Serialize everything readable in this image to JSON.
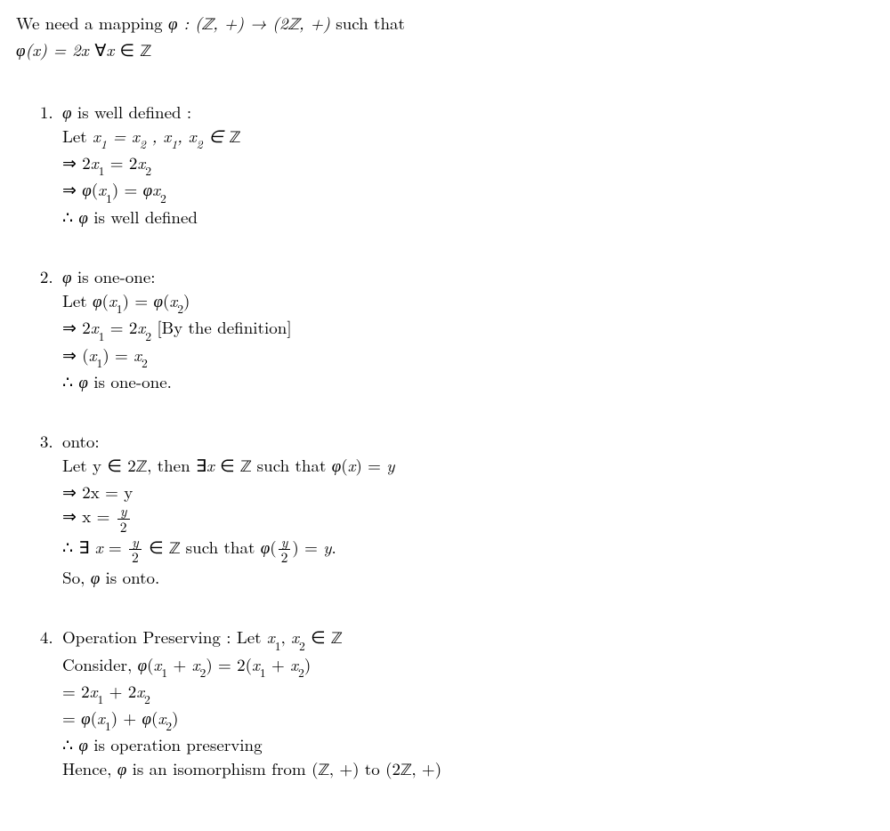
{
  "intro": {
    "line1_pre": "We need a mapping ",
    "line1_math": "φ : (ℤ, +) → (2ℤ, +)",
    "line1_post": " such that",
    "line2_math_a": "φ(x) = 2x ",
    "line2_math_b": "∀x ∈ ℤ"
  },
  "parts": [
    {
      "title_math": "φ",
      "title_text": " is well defined :",
      "lines": [
        {
          "pre": "Let ",
          "math": "x₁ = x₂ , x₁, x₂ ∈ ℤ"
        },
        {
          "math": "⇒ 2x₁ = 2x₂"
        },
        {
          "math": "⇒ φ(x₁) = φx₂"
        },
        {
          "pre": "∴ ",
          "math": "φ",
          "post": " is well defined"
        }
      ]
    },
    {
      "title_math": "φ",
      "title_text": " is one-one:",
      "lines": [
        {
          "pre": "Let ",
          "math": "φ(x₁) = φ(x₂)"
        },
        {
          "math": "⇒ 2x₁ = 2x₂ ",
          "post": "[By the definition]"
        },
        {
          "math": "⇒ (x₁) = x₂"
        },
        {
          "pre": "∴ ",
          "math": "φ",
          "post": " is one-one."
        }
      ]
    },
    {
      "title_text": "onto:",
      "lines": [
        {
          "pre": "Let y ∈ 2ℤ, then ∃",
          "math": "x",
          "post": " ∈ ℤ such that φ(x) = y",
          "ital_post": true,
          "mixed": true
        },
        {
          "math": "⇒ ",
          "post_plain": "2x = y"
        },
        {
          "math": "⇒ ",
          "post_plain": "x = ",
          "frac": {
            "num": "y",
            "den": "2"
          }
        },
        {
          "pre": "∴ ∃ ",
          "math": "x = ",
          "frac": {
            "num": "y",
            "den": "2"
          },
          "mid": " ∈ ℤ such that φ(",
          "frac2": {
            "num": "y",
            "den": "2"
          },
          "post": ") = y.",
          "ital_mid": false,
          "ital_post": true
        },
        {
          "pre": "So, ",
          "math": "φ",
          "post": " is onto."
        }
      ]
    },
    {
      "title_text": "Operation Preserving : Let ",
      "title_math2": "x₁, x₂ ∈ ℤ",
      "lines": [
        {
          "pre": "Consider, ",
          "math": "φ(x₁ + x₂) = 2(x₁ + x₂)"
        },
        {
          "math": "= 2x₁ + 2x₂"
        },
        {
          "math": "= φ(x₁) + φ(x₂)"
        },
        {
          "pre": "∴ ",
          "math": "φ",
          "post": " is operation preserving"
        },
        {
          "pre": "Hence, ",
          "math": "φ",
          "post": " is an isomorphism from (ℤ, +) to (2ℤ, +)"
        }
      ]
    }
  ]
}
